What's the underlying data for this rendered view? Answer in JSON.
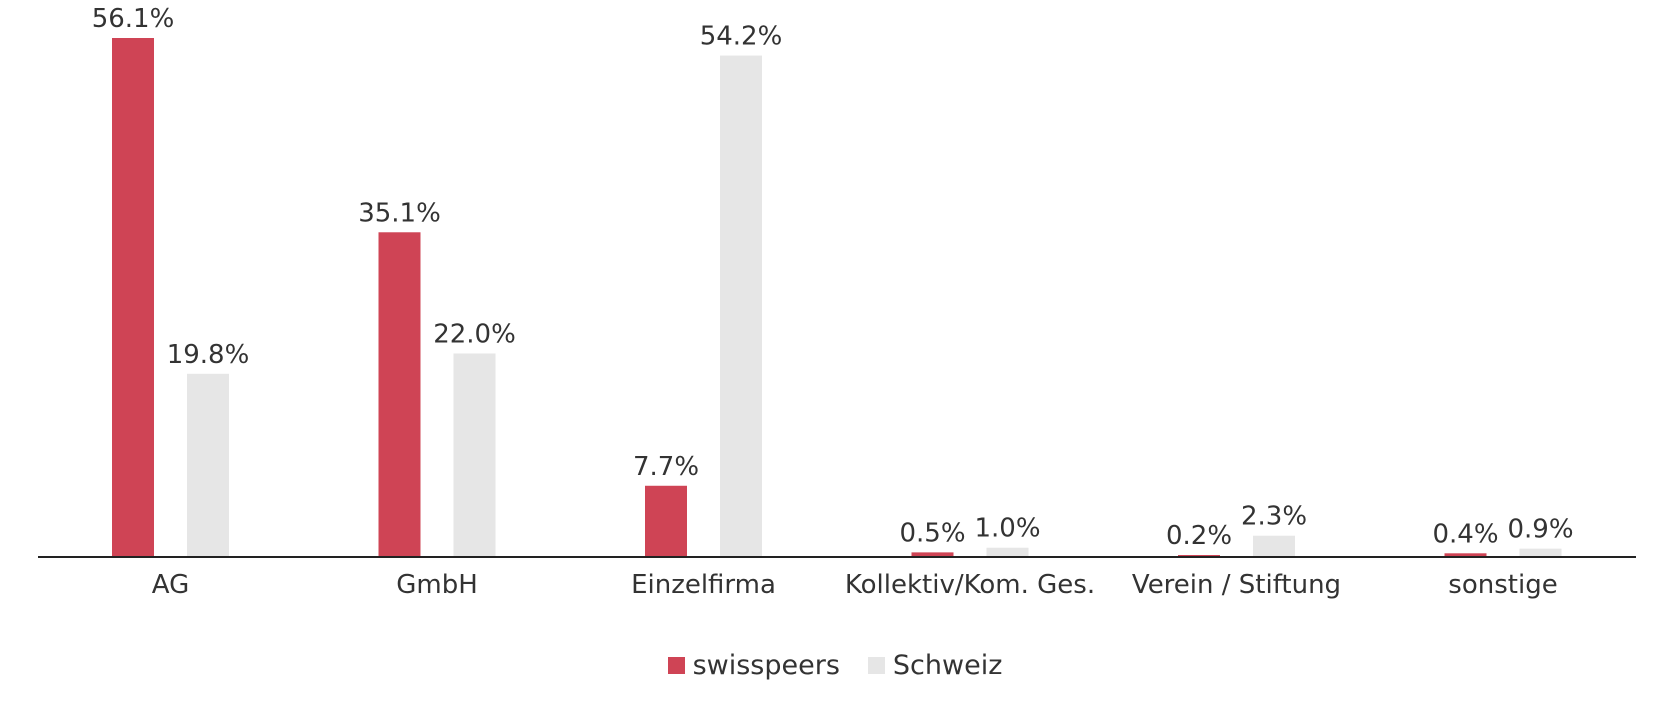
{
  "chart_data": {
    "type": "bar",
    "categories": [
      "AG",
      "GmbH",
      "Einzelfirma",
      "Kollektiv/Kom. Ges.",
      "Verein / Stiftung",
      "sonstige"
    ],
    "series": [
      {
        "name": "swisspeers",
        "color": "#cf4455",
        "values": [
          56.1,
          35.1,
          7.7,
          0.5,
          0.2,
          0.4
        ],
        "labels": [
          "56.1%",
          "35.1%",
          "7.7%",
          "0.5%",
          "0.2%",
          "0.4%"
        ]
      },
      {
        "name": "Schweiz",
        "color": "#e6e6e6",
        "values": [
          19.8,
          22.0,
          54.2,
          1.0,
          2.3,
          0.9
        ],
        "labels": [
          "19.8%",
          "22.0%",
          "54.2%",
          "1.0%",
          "2.3%",
          "0.9%"
        ]
      }
    ],
    "ylim": [
      0,
      56.1
    ],
    "grid": false,
    "legend_position": "bottom"
  }
}
